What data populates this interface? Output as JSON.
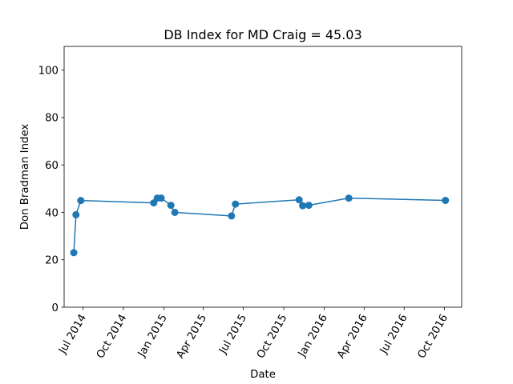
{
  "chart_data": {
    "type": "line",
    "title": "DB Index for MD Craig = 45.03",
    "xlabel": "Date",
    "ylabel": "Don Bradman Index",
    "ylim": [
      0,
      110
    ],
    "xlim": [
      "2014-05-19",
      "2016-11-09"
    ],
    "yticks": [
      0,
      20,
      40,
      60,
      80,
      100
    ],
    "xticks": [
      {
        "date": "2014-07-01",
        "label": "Jul 2014"
      },
      {
        "date": "2014-10-01",
        "label": "Oct 2014"
      },
      {
        "date": "2015-01-01",
        "label": "Jan 2015"
      },
      {
        "date": "2015-04-01",
        "label": "Apr 2015"
      },
      {
        "date": "2015-07-01",
        "label": "Jul 2015"
      },
      {
        "date": "2015-10-01",
        "label": "Oct 2015"
      },
      {
        "date": "2016-01-01",
        "label": "Jan 2016"
      },
      {
        "date": "2016-04-01",
        "label": "Apr 2016"
      },
      {
        "date": "2016-07-01",
        "label": "Jul 2016"
      },
      {
        "date": "2016-10-01",
        "label": "Oct 2016"
      }
    ],
    "grid": false,
    "color": "#1f77b4",
    "x": [
      "2014-06-10",
      "2014-06-15",
      "2014-06-26",
      "2014-12-09",
      "2014-12-17",
      "2014-12-26",
      "2015-01-17",
      "2015-01-26",
      "2015-06-04",
      "2015-06-13",
      "2015-11-05",
      "2015-11-13",
      "2015-11-27",
      "2016-02-26",
      "2016-10-03"
    ],
    "y": [
      23,
      39,
      45,
      44,
      46,
      46,
      43,
      40,
      38.5,
      43.5,
      45.3,
      42.8,
      43,
      46,
      45.03
    ]
  }
}
